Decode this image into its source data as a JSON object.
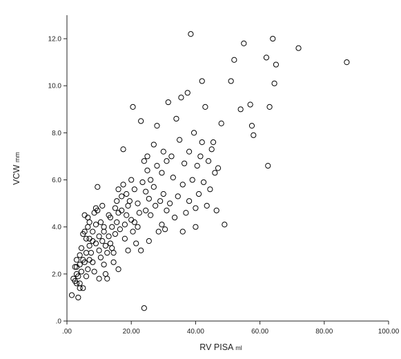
{
  "chart_data": {
    "type": "scatter",
    "title": "",
    "xlabel": "RV PISA",
    "xlabel_unit": "ml",
    "ylabel": "VCW",
    "ylabel_unit": "mm",
    "xlim": [
      0,
      100
    ],
    "ylim": [
      0,
      13
    ],
    "xticks": [
      0,
      20,
      40,
      60,
      80,
      100
    ],
    "xtick_labels": [
      ".00",
      "20.00",
      "40.00",
      "60.00",
      "80.00",
      "100.00"
    ],
    "yticks": [
      0,
      2,
      4,
      6,
      8,
      10,
      12
    ],
    "ytick_labels": [
      ".0",
      "2.0",
      "4.0",
      "6.0",
      "8.0",
      "10.0",
      "12.0"
    ],
    "grid": false,
    "legend": "none",
    "marker": "open-circle",
    "marker_color": "#000000",
    "points": [
      [
        1.5,
        1.1
      ],
      [
        2,
        1.8
      ],
      [
        2.5,
        1.7
      ],
      [
        3,
        1.6
      ],
      [
        3.5,
        1.0
      ],
      [
        3.5,
        1.9
      ],
      [
        4,
        1.6
      ],
      [
        4,
        1.4
      ],
      [
        4.5,
        2.1
      ],
      [
        5,
        1.4
      ],
      [
        3,
        2.3
      ],
      [
        3,
        2.6
      ],
      [
        4,
        2.4
      ],
      [
        4,
        2.8
      ],
      [
        4.5,
        3.1
      ],
      [
        5,
        2.6
      ],
      [
        5.5,
        2.5
      ],
      [
        6,
        2.9
      ],
      [
        6.5,
        2.2
      ],
      [
        7,
        2.6
      ],
      [
        5,
        3.7
      ],
      [
        5.5,
        3.8
      ],
      [
        6,
        3.5
      ],
      [
        6.5,
        4.0
      ],
      [
        7,
        4.2
      ],
      [
        5.5,
        4.5
      ],
      [
        6.5,
        4.4
      ],
      [
        7,
        3.2
      ],
      [
        7.5,
        2.9
      ],
      [
        8,
        2.5
      ],
      [
        8,
        3.4
      ],
      [
        8,
        3.8
      ],
      [
        8.5,
        4.6
      ],
      [
        9,
        4.1
      ],
      [
        9,
        4.8
      ],
      [
        9.5,
        4.7
      ],
      [
        9.5,
        5.7
      ],
      [
        10,
        3.6
      ],
      [
        10,
        3.0
      ],
      [
        10.5,
        2.7
      ],
      [
        10.5,
        4.2
      ],
      [
        11,
        4.9
      ],
      [
        11,
        3.4
      ],
      [
        11.5,
        4.0
      ],
      [
        11.5,
        2.4
      ],
      [
        12,
        3.2
      ],
      [
        12,
        2.0
      ],
      [
        12.5,
        2.9
      ],
      [
        13,
        4.5
      ],
      [
        13,
        3.6
      ],
      [
        13.5,
        4.4
      ],
      [
        14,
        4.0
      ],
      [
        14,
        3.1
      ],
      [
        14.5,
        2.5
      ],
      [
        15,
        4.8
      ],
      [
        15,
        3.7
      ],
      [
        15.5,
        4.2
      ],
      [
        15.5,
        5.1
      ],
      [
        16,
        4.6
      ],
      [
        16,
        2.2
      ],
      [
        16.5,
        3.9
      ],
      [
        17,
        5.3
      ],
      [
        17,
        4.7
      ],
      [
        17.5,
        5.8
      ],
      [
        17.5,
        7.3
      ],
      [
        18,
        4.1
      ],
      [
        18,
        3.5
      ],
      [
        18.5,
        5.4
      ],
      [
        19,
        4.9
      ],
      [
        19,
        3.0
      ],
      [
        19.5,
        5.1
      ],
      [
        20,
        4.3
      ],
      [
        20.5,
        3.8
      ],
      [
        20.5,
        9.1
      ],
      [
        21,
        5.6
      ],
      [
        21.5,
        3.3
      ],
      [
        22,
        4.0
      ],
      [
        22,
        5.0
      ],
      [
        22.5,
        4.6
      ],
      [
        23,
        8.5
      ],
      [
        23,
        3.0
      ],
      [
        23.5,
        5.9
      ],
      [
        24,
        0.55
      ],
      [
        24,
        6.8
      ],
      [
        24.5,
        4.7
      ],
      [
        24.5,
        5.5
      ],
      [
        25,
        6.4
      ],
      [
        25,
        7.0
      ],
      [
        25.5,
        5.2
      ],
      [
        25.5,
        3.4
      ],
      [
        26,
        4.5
      ],
      [
        26,
        6.0
      ],
      [
        27,
        5.7
      ],
      [
        27,
        7.5
      ],
      [
        27.5,
        4.9
      ],
      [
        28,
        8.3
      ],
      [
        28,
        6.6
      ],
      [
        28.5,
        3.8
      ],
      [
        29,
        5.1
      ],
      [
        29.5,
        6.3
      ],
      [
        29.5,
        4.1
      ],
      [
        30,
        7.2
      ],
      [
        30,
        5.4
      ],
      [
        30.5,
        3.9
      ],
      [
        31,
        6.8
      ],
      [
        31,
        4.7
      ],
      [
        31.5,
        9.3
      ],
      [
        32,
        5.0
      ],
      [
        32.5,
        7.0
      ],
      [
        33,
        6.1
      ],
      [
        33.5,
        4.4
      ],
      [
        34,
        8.6
      ],
      [
        34.5,
        5.3
      ],
      [
        35,
        7.7
      ],
      [
        35.5,
        9.5
      ],
      [
        36,
        5.8
      ],
      [
        36,
        3.8
      ],
      [
        36.5,
        6.7
      ],
      [
        37,
        4.6
      ],
      [
        37.5,
        9.7
      ],
      [
        38,
        7.2
      ],
      [
        38,
        5.1
      ],
      [
        38.5,
        12.2
      ],
      [
        39,
        6.0
      ],
      [
        39.5,
        8.0
      ],
      [
        40,
        4.0
      ],
      [
        40,
        4.8
      ],
      [
        40.5,
        6.6
      ],
      [
        41,
        5.4
      ],
      [
        41.5,
        7.0
      ],
      [
        42,
        10.2
      ],
      [
        42,
        7.6
      ],
      [
        42.5,
        5.9
      ],
      [
        43,
        9.1
      ],
      [
        43.5,
        4.9
      ],
      [
        44,
        6.8
      ],
      [
        44.5,
        5.6
      ],
      [
        45,
        7.3
      ],
      [
        45.5,
        7.6
      ],
      [
        46,
        6.3
      ],
      [
        46.5,
        4.7
      ],
      [
        47,
        6.5
      ],
      [
        48,
        8.4
      ],
      [
        49,
        4.1
      ],
      [
        51,
        10.2
      ],
      [
        52,
        11.1
      ],
      [
        54,
        9.0
      ],
      [
        55,
        11.8
      ],
      [
        57,
        9.2
      ],
      [
        57.5,
        8.3
      ],
      [
        58,
        7.9
      ],
      [
        62,
        11.2
      ],
      [
        62.5,
        6.6
      ],
      [
        63,
        9.1
      ],
      [
        64,
        12.0
      ],
      [
        64.5,
        10.1
      ],
      [
        65,
        10.9
      ],
      [
        72,
        11.6
      ],
      [
        87,
        11.0
      ],
      [
        3,
        2.0
      ],
      [
        2.5,
        2.3
      ],
      [
        6,
        1.9
      ],
      [
        8.5,
        2.1
      ],
      [
        10,
        1.8
      ],
      [
        12.5,
        1.8
      ],
      [
        14.5,
        2.9
      ],
      [
        9,
        3.3
      ],
      [
        7,
        3.5
      ],
      [
        18.5,
        4.5
      ],
      [
        20,
        6.0
      ],
      [
        21,
        4.2
      ],
      [
        16,
        5.6
      ],
      [
        11.5,
        3.8
      ],
      [
        13.5,
        3.3
      ]
    ]
  }
}
